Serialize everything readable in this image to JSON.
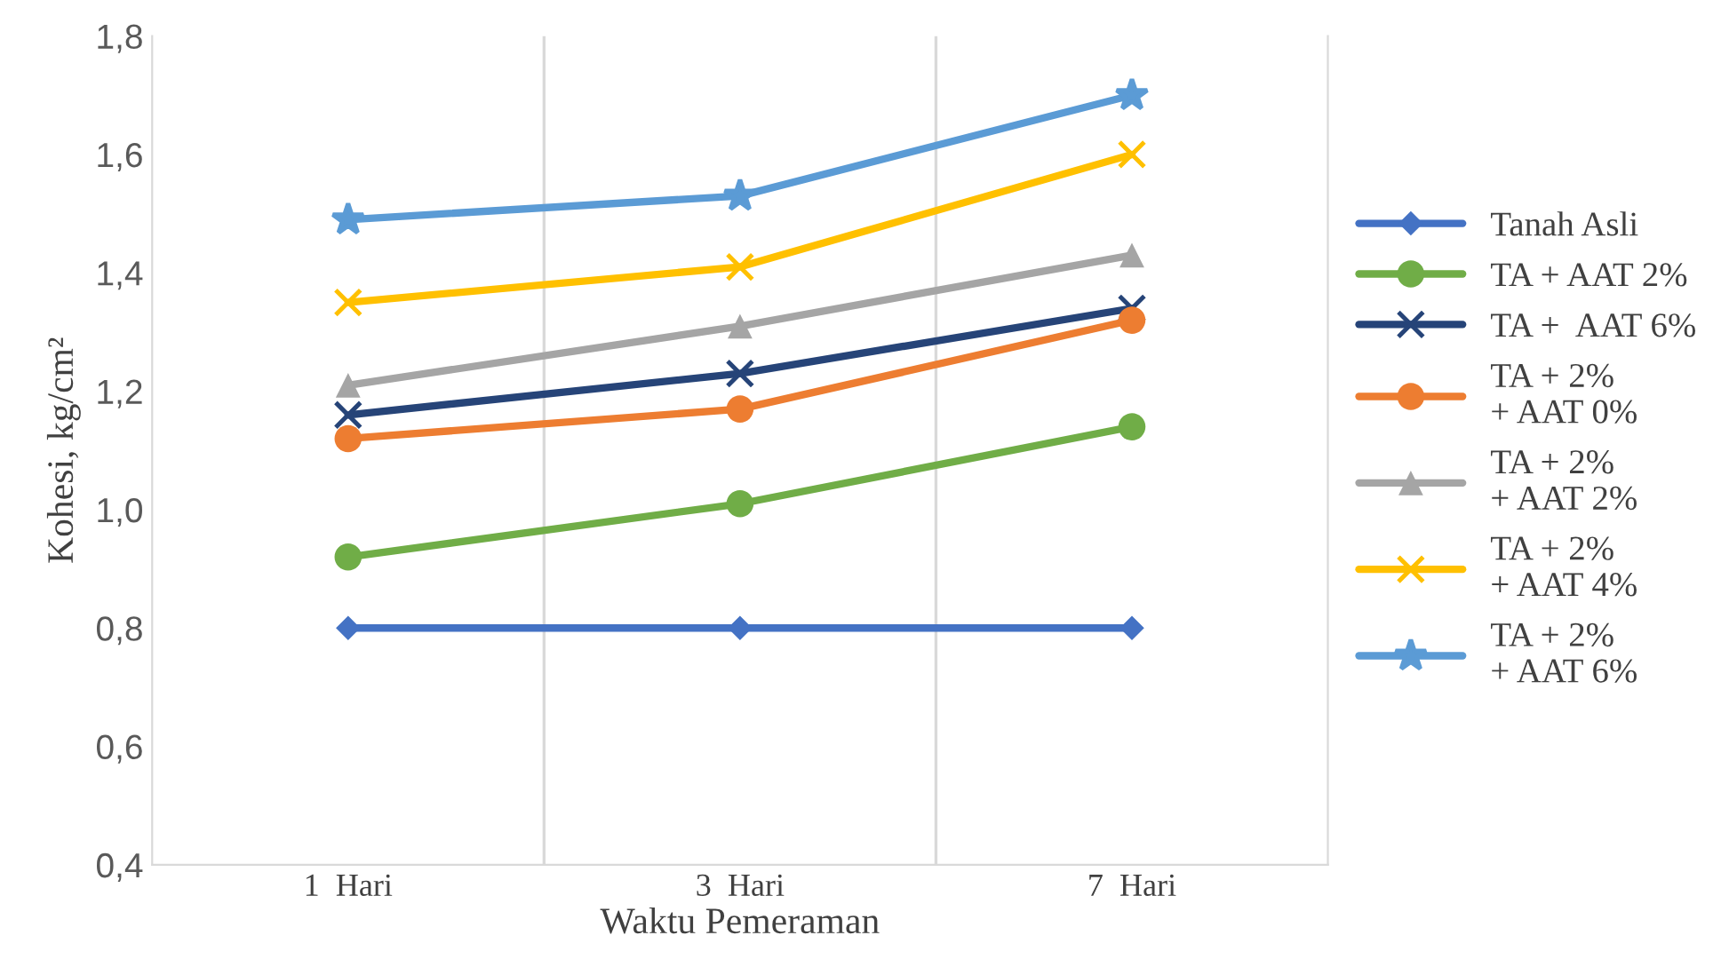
{
  "chart_data": {
    "type": "line",
    "xlabel": "Waktu Pemeraman",
    "ylabel": "Kohesi, kg/cm²",
    "categories": [
      "1  Hari",
      "3  Hari",
      "7  Hari"
    ],
    "ylim": [
      0.4,
      1.8
    ],
    "yticks": [
      {
        "value": 0.4,
        "label": "0,4"
      },
      {
        "value": 0.6,
        "label": "0,6"
      },
      {
        "value": 0.8,
        "label": "0,8"
      },
      {
        "value": 1.0,
        "label": "1,0"
      },
      {
        "value": 1.2,
        "label": "1,2"
      },
      {
        "value": 1.4,
        "label": "1,4"
      },
      {
        "value": 1.6,
        "label": "1,6"
      },
      {
        "value": 1.8,
        "label": "1,8"
      }
    ],
    "grid": "x",
    "legend": "right",
    "series": [
      {
        "name": "Tanah Asli",
        "color": "#4472c4",
        "marker": "diamond",
        "values": [
          0.8,
          0.8,
          0.8
        ]
      },
      {
        "name": "TA + AAT 2%",
        "color": "#70ad47",
        "marker": "circle",
        "values": [
          0.92,
          1.01,
          1.14
        ]
      },
      {
        "name": "TA +  AAT 6%",
        "color": "#264478",
        "marker": "cross",
        "values": [
          1.16,
          1.23,
          1.34
        ]
      },
      {
        "name": "TA + 2%\n+ AAT 0%",
        "color": "#ed7d31",
        "marker": "circle",
        "values": [
          1.12,
          1.17,
          1.32
        ]
      },
      {
        "name": "TA + 2%\n+ AAT 2%",
        "color": "#a5a5a5",
        "marker": "triangle",
        "values": [
          1.21,
          1.31,
          1.43
        ]
      },
      {
        "name": "TA + 2%\n+ AAT 4%",
        "color": "#ffc000",
        "marker": "cross",
        "values": [
          1.35,
          1.41,
          1.6
        ]
      },
      {
        "name": "TA + 2%\n+ AAT 6%",
        "color": "#5b9bd5",
        "marker": "star",
        "values": [
          1.49,
          1.53,
          1.7
        ]
      }
    ]
  }
}
